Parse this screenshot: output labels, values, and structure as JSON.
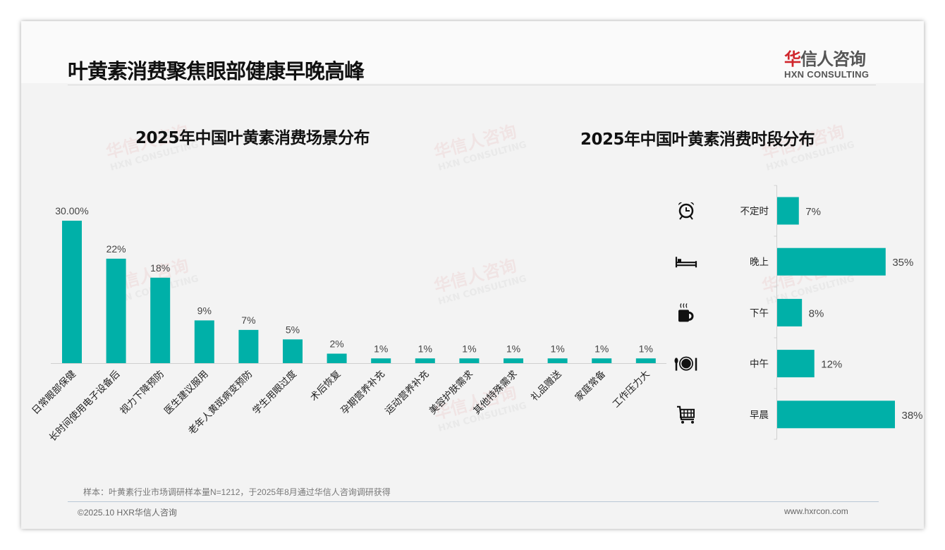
{
  "header": {
    "title": "叶黄素消费聚焦眼部健康早晚高峰"
  },
  "logo": {
    "cn_brand": "华",
    "cn_rest": "信人咨询",
    "en": "HXN CONSULTING"
  },
  "watermark": {
    "cn": "华信人咨询",
    "en": "HXN CONSULTING"
  },
  "colors": {
    "bar": "#00b0a8",
    "axis": "#d0d0d0",
    "brand_red": "#d0262c"
  },
  "chart_data": [
    {
      "type": "bar",
      "title": "2025年中国叶黄素消费场景分布",
      "orientation": "vertical",
      "categories": [
        "日常眼部保健",
        "长时间使用电子设备后",
        "视力下降预防",
        "医生建议服用",
        "老年人黄斑病变预防",
        "学生用眼过度",
        "术后恢复",
        "孕期营养补充",
        "运动营养补充",
        "美容护肤需求",
        "其他特殊需求",
        "礼品赠送",
        "家庭常备",
        "工作压力大"
      ],
      "values": [
        30,
        22,
        18,
        9,
        7,
        5,
        2,
        1,
        1,
        1,
        1,
        1,
        1,
        1
      ],
      "labels": [
        "30.00%",
        "22%",
        "18%",
        "9%",
        "7%",
        "5%",
        "2%",
        "1%",
        "1%",
        "1%",
        "1%",
        "1%",
        "1%",
        "1%"
      ],
      "ylim": [
        0,
        30
      ],
      "grid": false
    },
    {
      "type": "bar",
      "title": "2025年中国叶黄素消费时段分布",
      "orientation": "horizontal",
      "categories": [
        "不定时",
        "晚上",
        "下午",
        "中午",
        "早晨"
      ],
      "icons": [
        "alarm-clock-icon",
        "bed-icon",
        "coffee-cup-icon",
        "plate-cutlery-icon",
        "shopping-cart-icon"
      ],
      "values": [
        7,
        35,
        8,
        12,
        38
      ],
      "labels": [
        "7%",
        "35%",
        "8%",
        "12%",
        "38%"
      ],
      "xlim": [
        0,
        38
      ],
      "grid": false
    }
  ],
  "footer": {
    "note": "样本：叶黄素行业市场调研样本量N=1212，于2025年8月通过华信人咨询调研获得",
    "copyright": "©2025.10 HXR华信人咨询",
    "website": "www.hxrcon.com"
  }
}
